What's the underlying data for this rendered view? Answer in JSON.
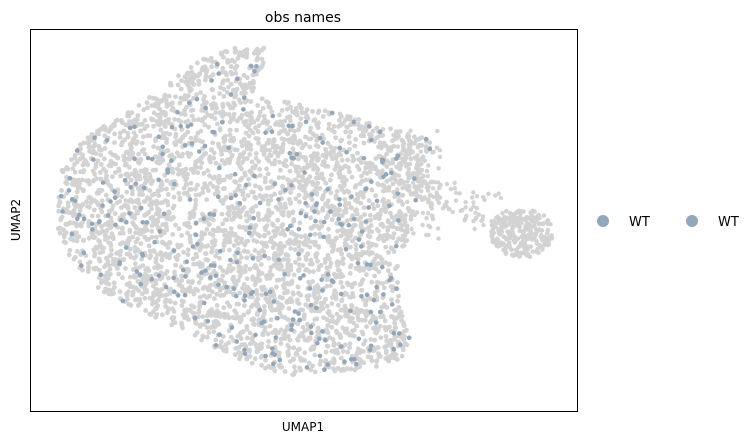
{
  "chart_data": {
    "type": "scatter",
    "title": "obs names",
    "xlabel": "UMAP1",
    "ylabel": "UMAP2",
    "xticks": "none",
    "yticks": "none",
    "grid": false,
    "legend_position": "right",
    "legend_entries": [
      {
        "label": "WT",
        "color": "#93a7ba"
      },
      {
        "label": "WT",
        "color": "#93a7ba"
      }
    ],
    "background_color": "#d3d3d3",
    "highlight_color": "#93a7ba",
    "point_count_note": ""
  }
}
